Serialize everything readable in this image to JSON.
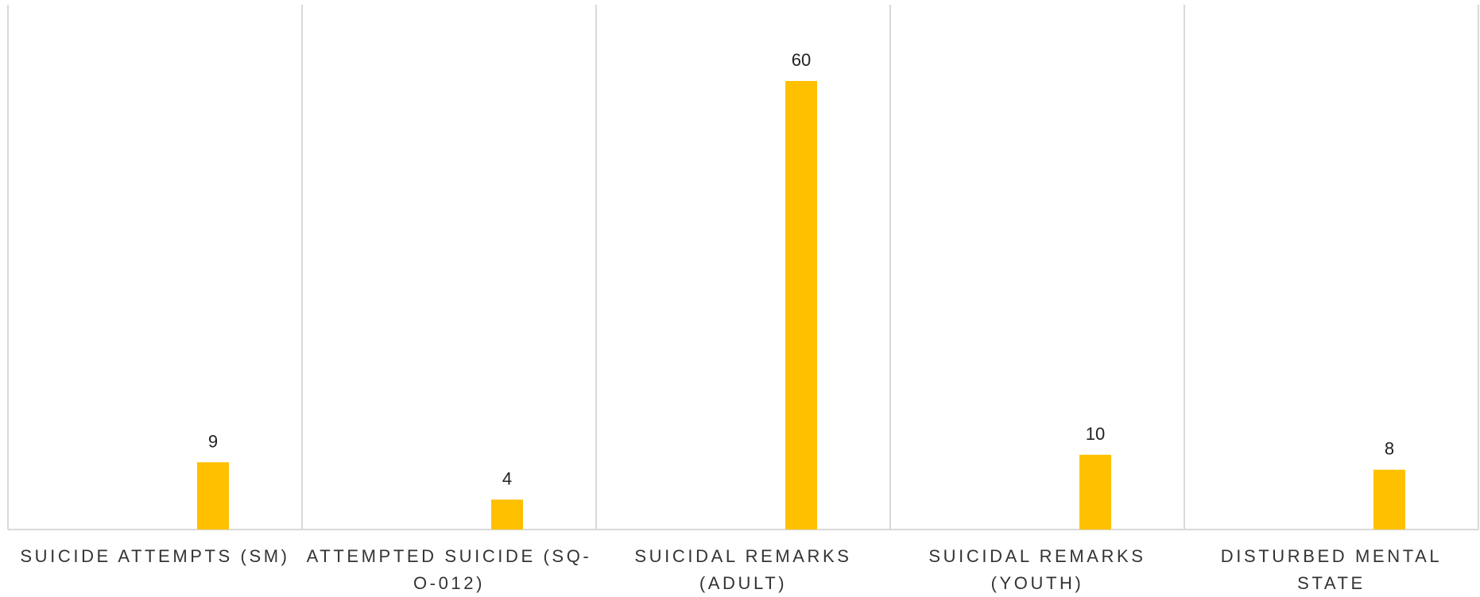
{
  "chart_data": {
    "type": "bar",
    "categories": [
      "SUICIDE ATTEMPTS (SM)",
      "ATTEMPTED SUICIDE (SQ-O-012)",
      "SUICIDAL REMARKS (ADULT)",
      "SUICIDAL REMARKS (YOUTH)",
      "DISTURBED MENTAL STATE"
    ],
    "category_lines": [
      [
        "SUICIDE ATTEMPTS (SM)"
      ],
      [
        "ATTEMPTED SUICIDE (SQ-",
        "O-012)"
      ],
      [
        "SUICIDAL REMARKS",
        "(ADULT)"
      ],
      [
        "SUICIDAL REMARKS",
        "(YOUTH)"
      ],
      [
        "DISTURBED MENTAL STATE"
      ]
    ],
    "values": [
      9,
      4,
      60,
      10,
      8
    ],
    "value_labels": [
      "9",
      "4",
      "60",
      "10",
      "8"
    ],
    "ylim": [
      0,
      70
    ],
    "grid": false,
    "category_separators": true,
    "colors": {
      "bar": "#FFC000",
      "separator": "#D9D9D9",
      "axis": "#D9D9D9"
    }
  }
}
